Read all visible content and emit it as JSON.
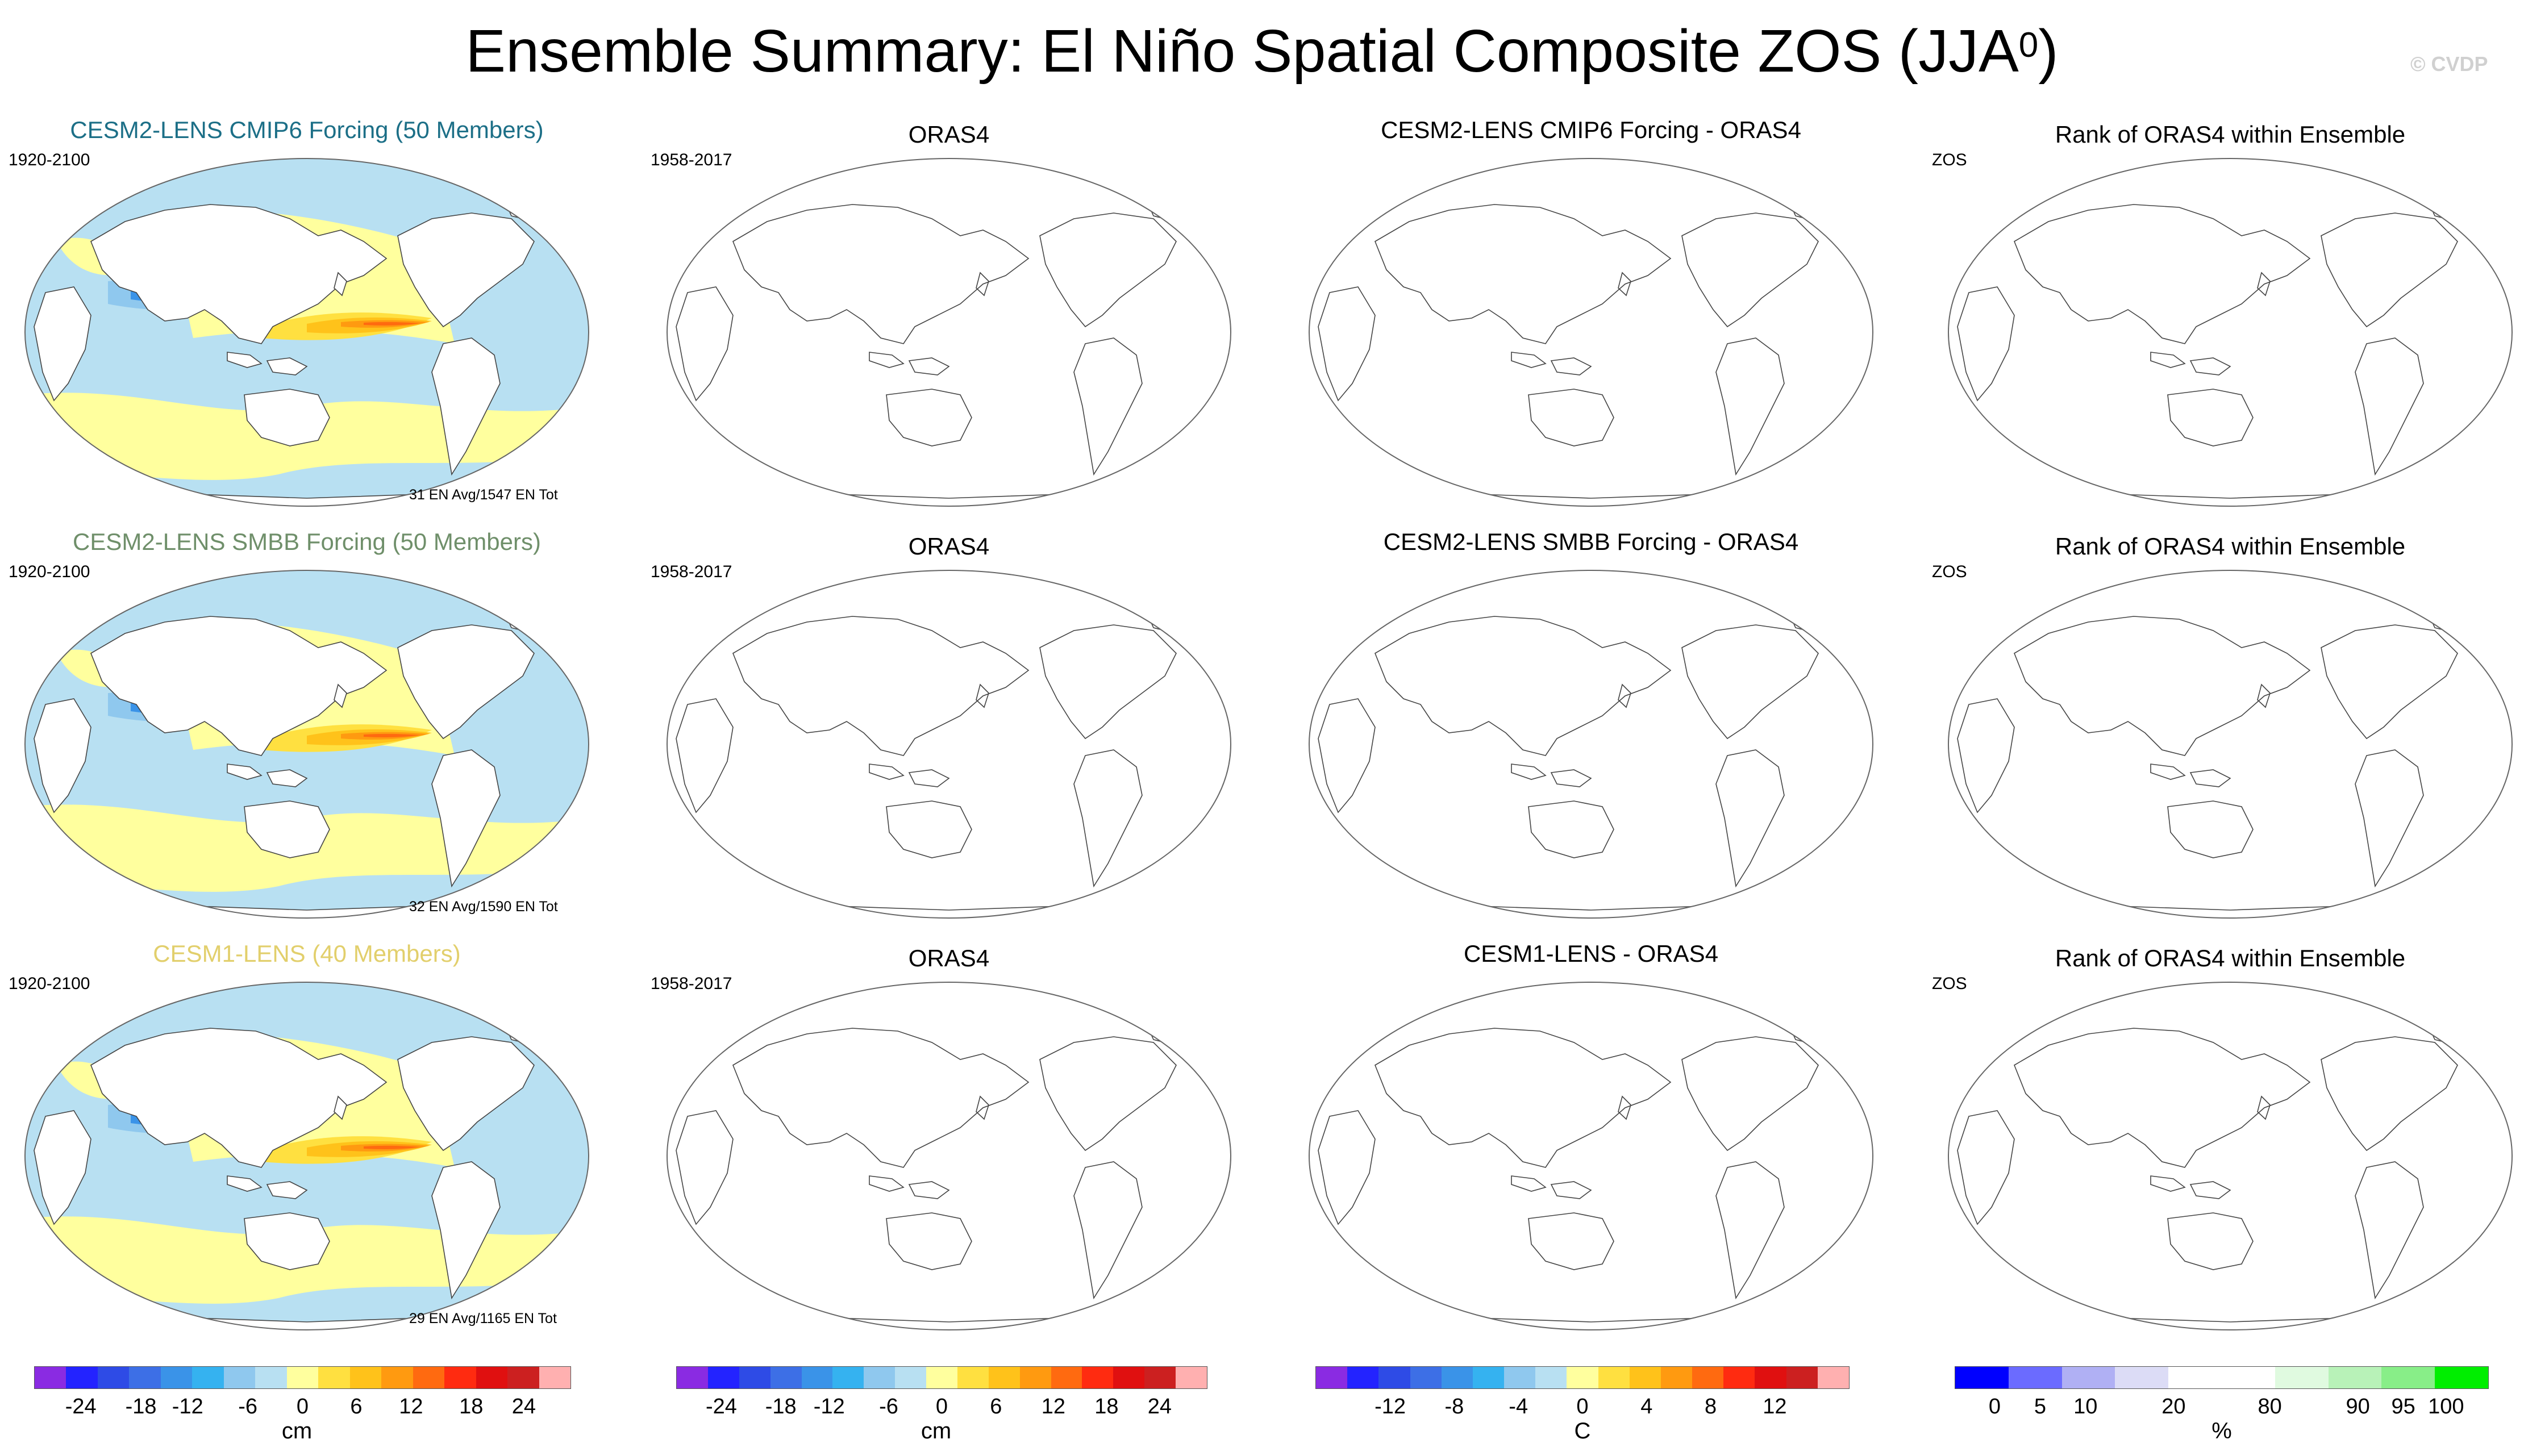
{
  "title": {
    "text": "Ensemble Summary: El Niño Spatial Composite ZOS (JJA",
    "sup": "0",
    "close": ")"
  },
  "watermark": "© CVDP",
  "rows": [
    {
      "ensemble_title": "CESM2-LENS CMIP6 Forcing (50 Members)",
      "ensemble_color": "#1c6f87",
      "ens_years": "1920-2100",
      "ens_bottom": "31 EN Avg/1547 EN Tot",
      "orig_title": "ORAS4",
      "obs_years": "1958-2017",
      "diff_title": "CESM2-LENS CMIP6 Forcing - ORAS4",
      "rank_title": "Rank of ORAS4 within Ensemble",
      "rank_var": "ZOS"
    },
    {
      "ensemble_title": "CESM2-LENS SMBB Forcing (50 Members)",
      "ensemble_color": "#6f8f6a",
      "ens_years": "1920-2100",
      "ens_bottom": "32 EN Avg/1590 EN Tot",
      "orig_title": "ORAS4",
      "obs_years": "1958-2017",
      "diff_title": "CESM2-LENS SMBB Forcing - ORAS4",
      "rank_title": "Rank of ORAS4 within Ensemble",
      "rank_var": "ZOS"
    },
    {
      "ensemble_title": "CESM1-LENS (40 Members)",
      "ensemble_color": "#e2cf6c",
      "ens_years": "1920-2100",
      "ens_bottom": "29 EN Avg/1165 EN Tot",
      "orig_title": "ORAS4",
      "obs_years": "1958-2017",
      "diff_title": "CESM1-LENS - ORAS4",
      "rank_title": "Rank of ORAS4 within Ensemble",
      "rank_var": "ZOS"
    }
  ],
  "colorbars": [
    {
      "unit": "cm",
      "colors": [
        "#8a2be2",
        "#2323ff",
        "#2e4be6",
        "#3d6fe6",
        "#3a93e8",
        "#35b2f0",
        "#8fc8ee",
        "#b8e0f2",
        "#ffff9e",
        "#ffe040",
        "#ffc21a",
        "#ff9a10",
        "#ff6a10",
        "#ff2b10",
        "#e01010",
        "#cc2020",
        "#ffb0b0"
      ],
      "ticks": [
        "-24",
        "-18",
        "-12",
        "-6",
        "0",
        "6",
        "12",
        "18",
        "24"
      ]
    },
    {
      "unit": "cm",
      "colors": [
        "#8a2be2",
        "#2323ff",
        "#2e4be6",
        "#3d6fe6",
        "#3a93e8",
        "#35b2f0",
        "#8fc8ee",
        "#b8e0f2",
        "#ffff9e",
        "#ffe040",
        "#ffc21a",
        "#ff9a10",
        "#ff6a10",
        "#ff2b10",
        "#e01010",
        "#cc2020",
        "#ffb0b0"
      ],
      "ticks": [
        "-24",
        "-18",
        "-12",
        "-6",
        "0",
        "6",
        "12",
        "18",
        "24"
      ]
    },
    {
      "unit": "C",
      "colors": [
        "#8a2be2",
        "#2323ff",
        "#2e4be6",
        "#3d6fe6",
        "#3a93e8",
        "#35b2f0",
        "#8fc8ee",
        "#b8e0f2",
        "#ffff9e",
        "#ffe040",
        "#ffc21a",
        "#ff9a10",
        "#ff6a10",
        "#ff2b10",
        "#e01010",
        "#cc2020",
        "#ffb0b0"
      ],
      "ticks": [
        "-12",
        "-8",
        "-4",
        "0",
        "4",
        "8",
        "12"
      ]
    },
    {
      "unit": "%",
      "colors": [
        "#0000ff",
        "#6b6bff",
        "#b0b0f4",
        "#dcdcf6",
        "#ffffff",
        "#ffffff",
        "#e0fae0",
        "#b8f2b8",
        "#88ee88",
        "#00ee00"
      ],
      "ticks": [
        "0",
        "5",
        "10",
        "20",
        "80",
        "90",
        "95",
        "100"
      ]
    }
  ]
}
